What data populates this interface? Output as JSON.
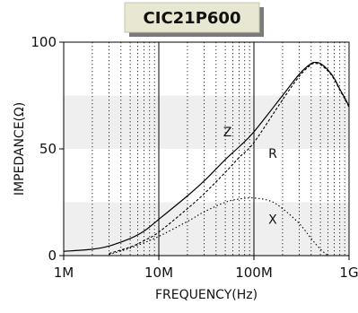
{
  "chart_data": {
    "type": "line",
    "title": "CIC21P600",
    "xlabel": "FREQUENCY(Hz)",
    "ylabel": "IMPEDANCE(Ω)",
    "xscale": "log",
    "xlim": [
      1000000,
      1000000000
    ],
    "ylim": [
      0,
      100
    ],
    "x_ticks": [
      1000000,
      10000000,
      100000000,
      1000000000
    ],
    "x_tick_labels": [
      "1M",
      "10M",
      "100M",
      "1G"
    ],
    "y_ticks": [
      0,
      50,
      100
    ],
    "y_tick_labels": [
      "0",
      "50",
      "100"
    ],
    "grid": "dotted minor verticals, solid major verticals, shaded bands",
    "bands": [
      {
        "from": 0,
        "to": 25
      },
      {
        "from": 50,
        "to": 75
      }
    ],
    "series": [
      {
        "name": "Z",
        "style": "solid",
        "x": [
          1000000,
          2000000,
          3000000,
          5000000,
          7000000,
          10000000,
          20000000,
          30000000,
          50000000,
          70000000,
          100000000,
          200000000,
          300000000,
          400000000,
          450000000,
          500000000,
          600000000,
          700000000,
          800000000,
          900000000,
          1000000000
        ],
        "y": [
          2,
          3,
          4.5,
          8,
          11.5,
          17,
          28,
          35,
          45,
          51,
          58,
          75,
          85,
          90,
          90.5,
          90,
          87,
          83,
          78,
          74,
          70
        ]
      },
      {
        "name": "R",
        "style": "dashed",
        "x": [
          3000000,
          5000000,
          7000000,
          10000000,
          20000000,
          30000000,
          50000000,
          70000000,
          100000000,
          200000000,
          300000000,
          400000000,
          450000000,
          500000000,
          600000000,
          700000000,
          800000000,
          900000000,
          1000000000
        ],
        "y": [
          1,
          4,
          7,
          11,
          22,
          29,
          39,
          46,
          53,
          73,
          84,
          89.5,
          90,
          89.5,
          86.5,
          82.5,
          77.5,
          73.5,
          69.5
        ]
      },
      {
        "name": "X",
        "style": "dotted",
        "x": [
          3000000,
          5000000,
          7000000,
          10000000,
          20000000,
          30000000,
          50000000,
          70000000,
          100000000,
          150000000,
          200000000,
          300000000,
          400000000,
          500000000,
          600000000
        ],
        "y": [
          0.5,
          3.5,
          6,
          9,
          16,
          20.5,
          25,
          26.5,
          27,
          25.5,
          22,
          15,
          8,
          3,
          0
        ]
      }
    ]
  }
}
